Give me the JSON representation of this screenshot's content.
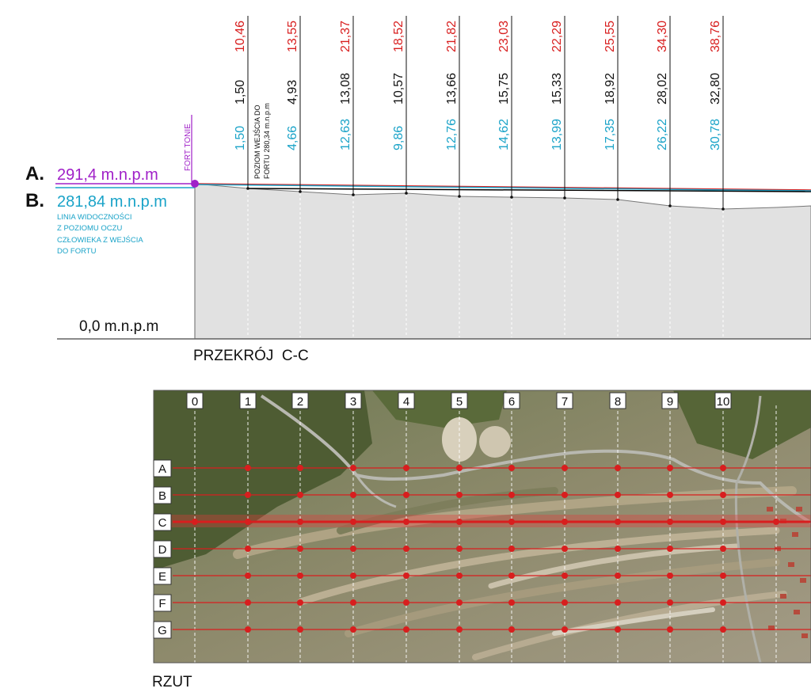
{
  "section": {
    "title": "PRZEKRÓJ  C-C",
    "level_a": {
      "letter": "A.",
      "value": "291,4 m.n.p.m"
    },
    "level_b": {
      "letter": "B.",
      "value": "281,84 m.n.p.m"
    },
    "sight_line_note": [
      "LINIA WIDOCZNOŚCI",
      "Z POZIOMU OCZU",
      "CZŁOWIEKA Z WEJŚCIA",
      "DO FORTU"
    ],
    "base_level": "0,0 m.n.p.m",
    "fort_label": "FORT  TONIE",
    "entry_note": [
      "POZIOM WEJŚCIA DO",
      "FORTU 280,34 m.n.p.m"
    ],
    "stations": [
      {
        "red": "10,46",
        "black": "1,50",
        "blue": "1,50"
      },
      {
        "red": "13,55",
        "black": "4,93",
        "blue": "4,66"
      },
      {
        "red": "21,37",
        "black": "13,08",
        "blue": "12,63"
      },
      {
        "red": "18,52",
        "black": "10,57",
        "blue": "9,86"
      },
      {
        "red": "21,82",
        "black": "13,66",
        "blue": "12,76"
      },
      {
        "red": "23,03",
        "black": "15,75",
        "blue": "14,62"
      },
      {
        "red": "22,29",
        "black": "15,33",
        "blue": "13,99"
      },
      {
        "red": "25,55",
        "black": "18,92",
        "blue": "17,35"
      },
      {
        "red": "34,30",
        "black": "28,02",
        "blue": "26,22"
      },
      {
        "red": "38,76",
        "black": "32,80",
        "blue": "30,78"
      }
    ]
  },
  "plan": {
    "title": "RZUT",
    "columns": [
      "0",
      "1",
      "2",
      "3",
      "4",
      "5",
      "6",
      "7",
      "8",
      "9",
      "10"
    ],
    "rows": [
      "A",
      "B",
      "C",
      "D",
      "E",
      "F",
      "G"
    ]
  },
  "colors": {
    "magenta": "#a020c8",
    "blue": "#1aa3c8",
    "red": "#d81e1e",
    "terrain": "#e1e1e1"
  }
}
